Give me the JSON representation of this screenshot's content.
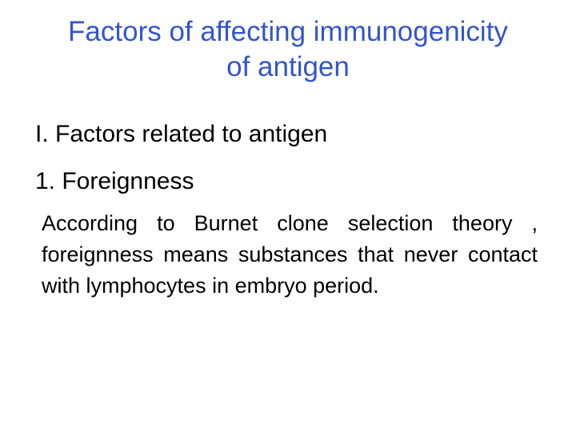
{
  "title_color": "#3355cc",
  "body_color": "#000000",
  "title": "Factors of affecting immunogenicity of antigen",
  "heading1": "I. Factors related to antigen",
  "heading2": "1. Foreignness",
  "body": "According to Burnet clone selection theory , foreignness means substances that  never contact with lymphocytes in embryo period."
}
